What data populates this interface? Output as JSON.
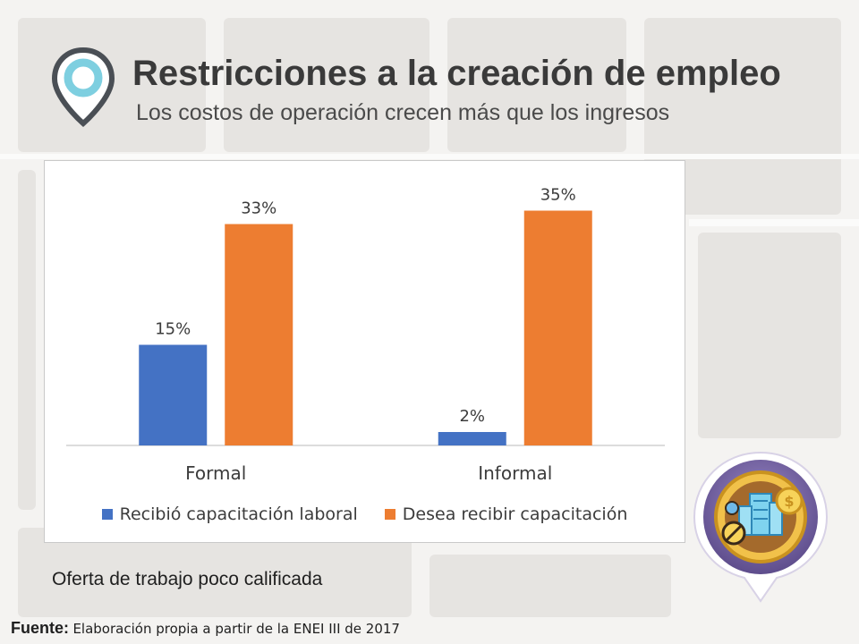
{
  "header": {
    "title": "Restricciones a la creación de empleo",
    "subtitle": "Los costos de operación crecen más que los ingresos",
    "icon": "location-pin-icon"
  },
  "chart_data": {
    "type": "bar",
    "categories": [
      "Formal",
      "Informal"
    ],
    "series": [
      {
        "name": "Recibió capacitación laboral",
        "values": [
          15,
          2
        ],
        "labels": [
          "15%",
          "2%"
        ],
        "color": "#4472c4"
      },
      {
        "name": "Desea recibir capacitación",
        "values": [
          33,
          35
        ],
        "labels": [
          "33%",
          "35%"
        ],
        "color": "#ed7d31"
      }
    ],
    "ylim": [
      0,
      40
    ],
    "legend": "bottom",
    "grid": false
  },
  "caption": "Oferta de trabajo poco calificada",
  "source": {
    "label": "Fuente:",
    "text": "Elaboración propia a partir de la ENEI III de 2017"
  },
  "badge": {
    "icon": "building-coins-badge-icon",
    "colors": {
      "rim": "#7b6aa8",
      "gold": "#e9b23a"
    }
  }
}
